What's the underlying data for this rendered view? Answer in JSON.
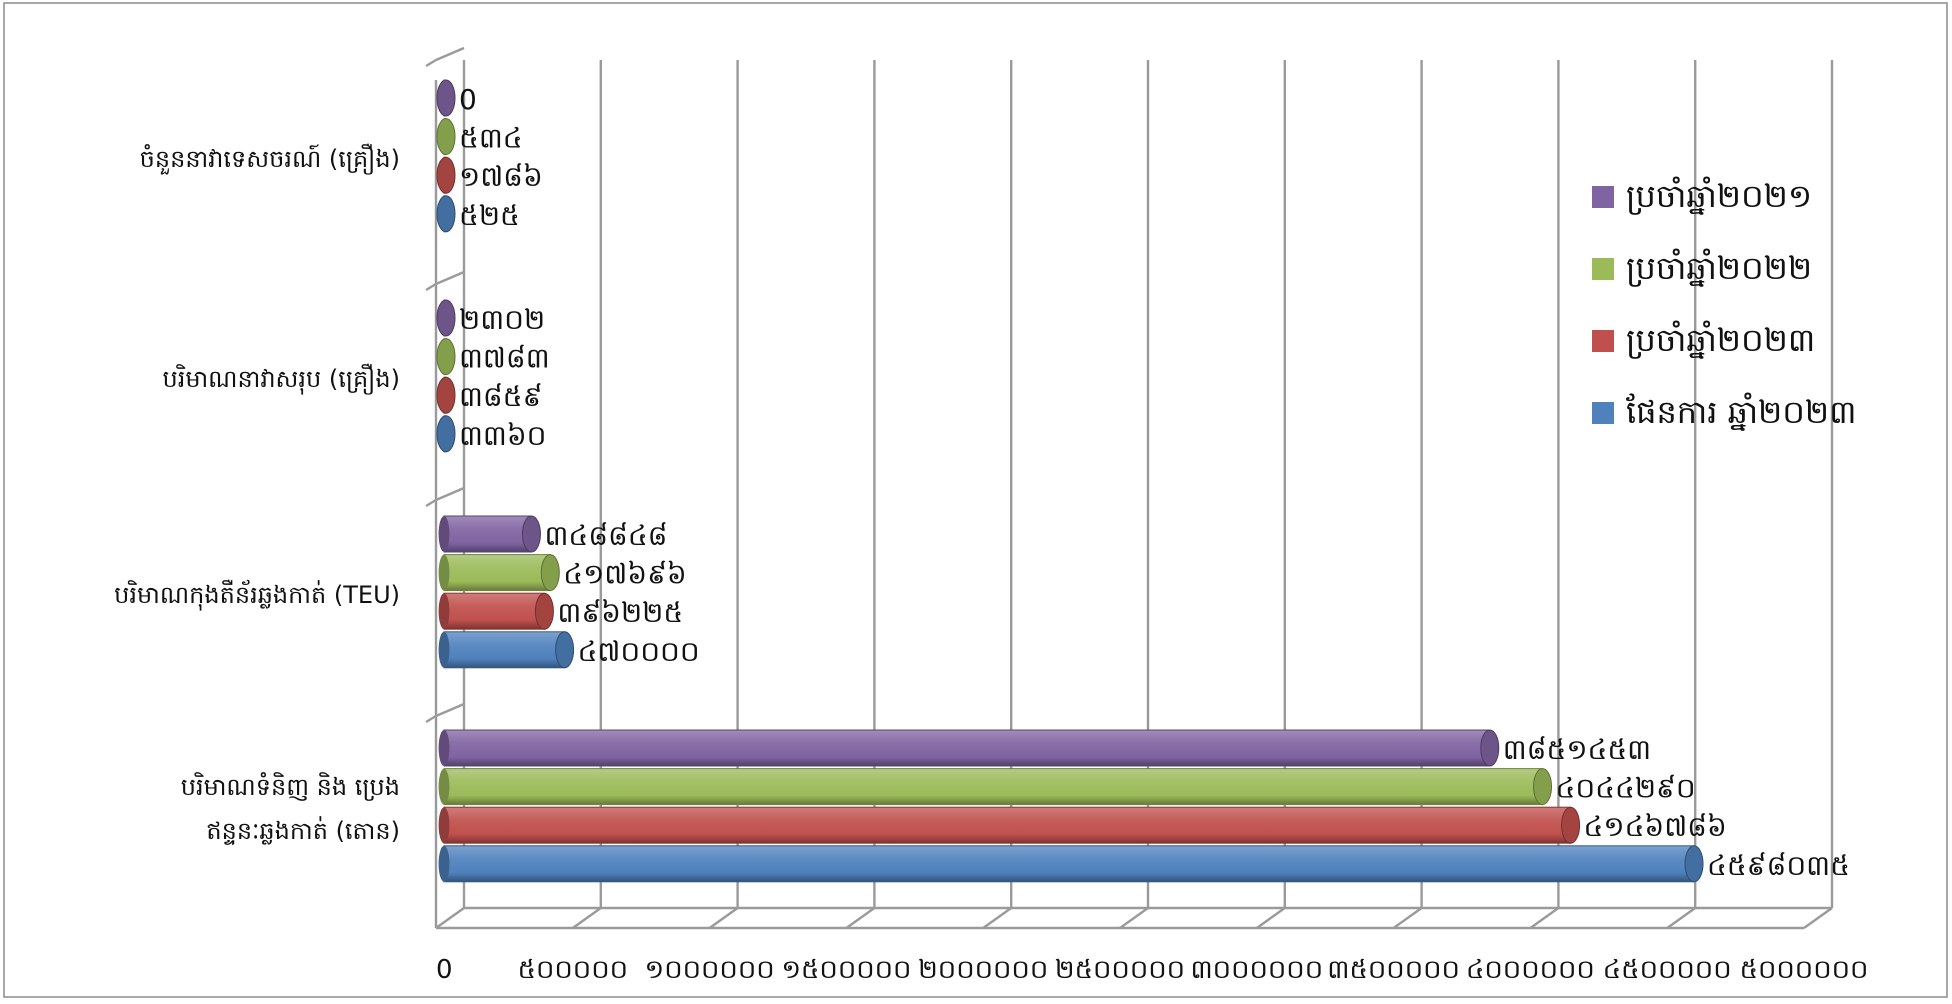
{
  "chart_data": {
    "type": "bar",
    "orientation": "horizontal",
    "style": "3d-cylinder",
    "categories": [
      "ចំនួននាវាទេសចរណ៍ (គ្រឿង)",
      "បរិមាណនាវាសរុប (គ្រឿង)",
      "បរិមាណកុងតឺន័រឆ្លងកាត់ (TEU)",
      "បរិមាណទំនិញ និង ប្រេងឥន្ទនៈឆ្លងកាត់ (តោន)"
    ],
    "category_lines": [
      [
        "ចំនួននាវាទេសចរណ៍ (គ្រឿង)"
      ],
      [
        "បរិមាណនាវាសរុប (គ្រឿង)"
      ],
      [
        "បរិមាណកុងតឺន័រឆ្លងកាត់ (TEU)"
      ],
      [
        "បរិមាណទំនិញ និង ប្រេង",
        "ឥន្ទនៈឆ្លងកាត់ (តោន)"
      ]
    ],
    "series": [
      {
        "name": "ប្រចាំឆ្នាំ២០២១",
        "color": "#8064a2",
        "values": [
          0,
          2302,
          348848,
          3851453
        ],
        "labels": [
          "0",
          "២៣០២",
          "៣៤៨៨៤៨",
          "៣៨៥១៤៥៣"
        ]
      },
      {
        "name": "ប្រចាំឆ្នាំ២០២២",
        "color": "#9bbb59",
        "values": [
          534,
          3783,
          417696,
          4044290
        ],
        "labels": [
          "៥៣៤",
          "៣៧៨៣",
          "៤១៧៦៩៦",
          "៤០៤៤២៩០"
        ]
      },
      {
        "name": "ប្រចាំឆ្នាំ២០២៣",
        "color": "#c0504d",
        "values": [
          1786,
          3859,
          396225,
          4146786
        ],
        "labels": [
          "១៧៨៦",
          "៣៨៥៩",
          "៣៩៦២២៥",
          "៤១៤៦៧៨៦"
        ]
      },
      {
        "name": "ផែនការ ឆ្នាំ២០២៣",
        "color": "#4f81bd",
        "values": [
          525,
          3360,
          470000,
          4598035
        ],
        "labels": [
          "៥២៥",
          "៣៣៦០",
          "៤៧០០០០",
          "៤៥៩៨០៣៥"
        ]
      }
    ],
    "xlim": [
      0,
      5000000
    ],
    "x_ticks": [
      0,
      500000,
      1000000,
      1500000,
      2000000,
      2500000,
      3000000,
      3500000,
      4000000,
      4500000,
      5000000
    ],
    "x_tick_labels": [
      "0",
      "៥០០០០០",
      "១០០០០០០",
      "១៥០០០០០",
      "២០០០០០០",
      "២៥០០០០០",
      "៣០០០០០០",
      "៣៥០០០០០",
      "៤០០០០០០",
      "៤៥០០០០០",
      "៥០០០០០០"
    ],
    "legend": {
      "position": "right",
      "entries": [
        "ប្រចាំឆ្នាំ២០២១",
        "ប្រចាំឆ្នាំ២០២២",
        "ប្រចាំឆ្នាំ២០២៣",
        "ផែនការ ឆ្នាំ២០២៣"
      ]
    },
    "grid": true
  }
}
